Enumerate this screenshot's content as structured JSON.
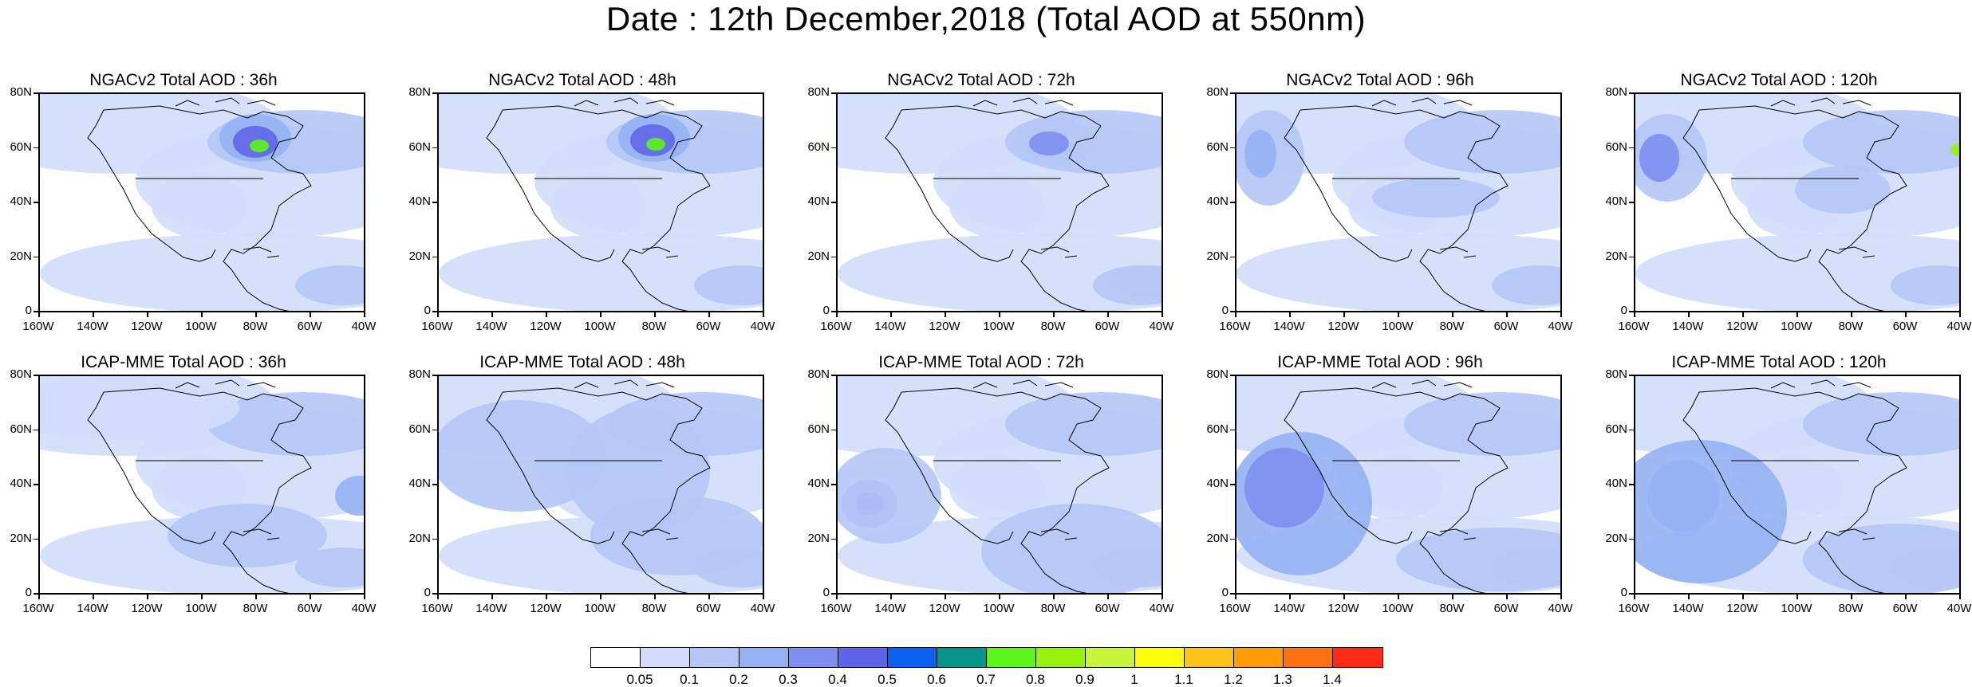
{
  "title": "Date : 12th December,2018 (Total AOD at 550nm)",
  "panels": [
    {
      "title": "NGACv2 Total AOD : 36h",
      "model": "NGACv2",
      "lead": "36h"
    },
    {
      "title": "NGACv2 Total AOD : 48h",
      "model": "NGACv2",
      "lead": "48h"
    },
    {
      "title": "NGACv2 Total AOD : 72h",
      "model": "NGACv2",
      "lead": "72h"
    },
    {
      "title": "NGACv2 Total AOD : 96h",
      "model": "NGACv2",
      "lead": "96h"
    },
    {
      "title": "NGACv2 Total AOD : 120h",
      "model": "NGACv2",
      "lead": "120h"
    },
    {
      "title": "ICAP-MME Total AOD : 36h",
      "model": "ICAP-MME",
      "lead": "36h"
    },
    {
      "title": "ICAP-MME Total AOD : 48h",
      "model": "ICAP-MME",
      "lead": "48h"
    },
    {
      "title": "ICAP-MME Total AOD : 72h",
      "model": "ICAP-MME",
      "lead": "72h"
    },
    {
      "title": "ICAP-MME Total AOD : 96h",
      "model": "ICAP-MME",
      "lead": "96h"
    },
    {
      "title": "ICAP-MME Total AOD : 120h",
      "model": "ICAP-MME",
      "lead": "120h"
    }
  ],
  "lat_labels": [
    "80N",
    "60N",
    "40N",
    "20N",
    "0"
  ],
  "lon_labels": [
    "160W",
    "140W",
    "120W",
    "100W",
    "80W",
    "60W",
    "40W"
  ],
  "colorbar": {
    "labels": [
      "0.05",
      "0.1",
      "0.2",
      "0.3",
      "0.4",
      "0.5",
      "0.6",
      "0.7",
      "0.8",
      "0.9",
      "1",
      "1.1",
      "1.2",
      "1.3",
      "1.4"
    ],
    "colors": [
      "#ffffff",
      "#d3ddfb",
      "#b4c6f6",
      "#94b1f2",
      "#7e8ff0",
      "#5f65e8",
      "#0c61f0",
      "#08958e",
      "#5cf51c",
      "#97f20e",
      "#c9f53d",
      "#fdfd09",
      "#ffc21a",
      "#ff9d09",
      "#ff7010",
      "#ff2a18"
    ]
  }
}
